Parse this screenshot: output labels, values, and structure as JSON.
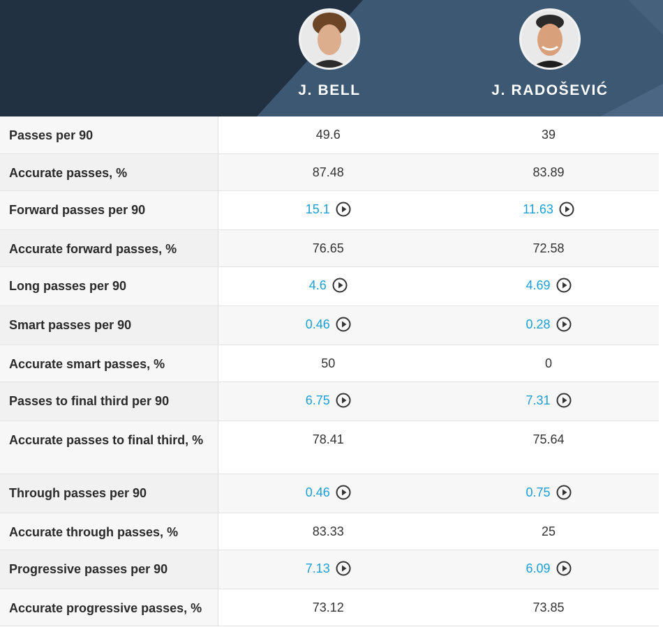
{
  "players": [
    {
      "name": "J. BELL",
      "avatar_icon": "player-photo"
    },
    {
      "name": "J. RADOŠEVIĆ",
      "avatar_icon": "player-photo"
    }
  ],
  "colors": {
    "header_dark": "#223141",
    "header_light": "#3d5872",
    "link": "#1a9fd6"
  },
  "rows": [
    {
      "label": "Passes per 90",
      "v1": "49.6",
      "v2": "39",
      "v1_video": false,
      "v2_video": false
    },
    {
      "label": "Accurate passes, %",
      "v1": "87.48",
      "v2": "83.89",
      "v1_video": false,
      "v2_video": false
    },
    {
      "label": "Forward passes per 90",
      "v1": "15.1",
      "v2": "11.63",
      "v1_video": true,
      "v2_video": true
    },
    {
      "label": "Accurate forward passes, %",
      "v1": "76.65",
      "v2": "72.58",
      "v1_video": false,
      "v2_video": false
    },
    {
      "label": "Long passes per 90",
      "v1": "4.6",
      "v2": "4.69",
      "v1_video": true,
      "v2_video": true
    },
    {
      "label": "Smart passes per 90",
      "v1": "0.46",
      "v2": "0.28",
      "v1_video": true,
      "v2_video": true
    },
    {
      "label": "Accurate smart passes, %",
      "v1": "50",
      "v2": "0",
      "v1_video": false,
      "v2_video": false
    },
    {
      "label": "Passes to final third per 90",
      "v1": "6.75",
      "v2": "7.31",
      "v1_video": true,
      "v2_video": true
    },
    {
      "label": "Accurate passes to final third, %",
      "v1": "78.41",
      "v2": "75.64",
      "v1_video": false,
      "v2_video": false
    },
    {
      "label": "Through passes per 90",
      "v1": "0.46",
      "v2": "0.75",
      "v1_video": true,
      "v2_video": true
    },
    {
      "label": "Accurate through passes, %",
      "v1": "83.33",
      "v2": "25",
      "v1_video": false,
      "v2_video": false
    },
    {
      "label": "Progressive passes per 90",
      "v1": "7.13",
      "v2": "6.09",
      "v1_video": true,
      "v2_video": true
    },
    {
      "label": "Accurate progressive passes, %",
      "v1": "73.12",
      "v2": "73.85",
      "v1_video": false,
      "v2_video": false
    }
  ]
}
